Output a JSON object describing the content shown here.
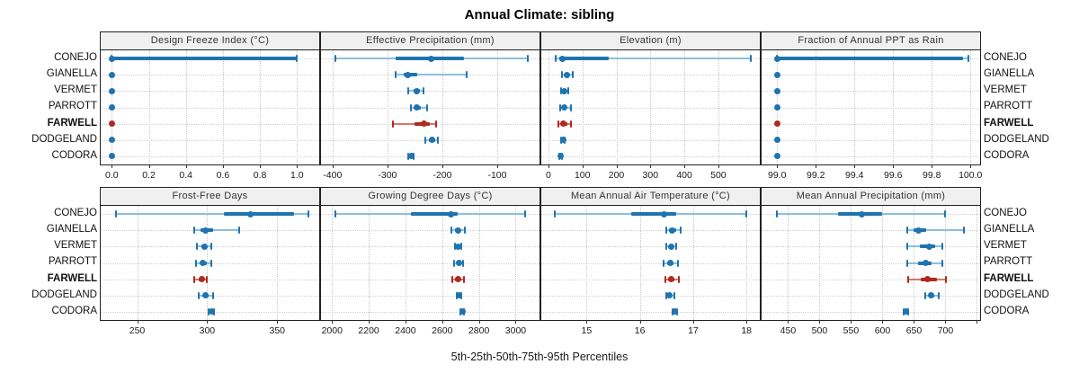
{
  "title": "Annual Climate: sibling",
  "caption": "5th-25th-50th-75th-95th Percentiles",
  "percentile_labels": [
    "5th",
    "25th",
    "50th",
    "75th",
    "95th"
  ],
  "sites": [
    "CONEJO",
    "GIANELLA",
    "VERMET",
    "PARROTT",
    "FARWELL",
    "DODGELAND",
    "CODORA"
  ],
  "highlighted_site": "FARWELL",
  "colors": {
    "point": "#1f74b0",
    "whisker_light": "#8fbedd",
    "highlight_point": "#b02a20",
    "highlight_whisker_light": "#cd7b70",
    "strip_bg": "#f0f0f0",
    "panel_border": "#222222",
    "grid": "#c6c6c6"
  },
  "chart_data": [
    {
      "type": "dotplot-percentiles",
      "title": "Design Freeze Index (°C)",
      "grid_row": 1,
      "grid_col": 1,
      "xlim": [
        -0.06,
        1.12
      ],
      "ticks": [
        {
          "v": 0.0,
          "label": "0.0"
        },
        {
          "v": 0.2,
          "label": "0.2"
        },
        {
          "v": 0.4,
          "label": "0.4"
        },
        {
          "v": 0.6,
          "label": "0.6"
        },
        {
          "v": 0.8,
          "label": "0.8"
        },
        {
          "v": 1.0,
          "label": "1.0"
        }
      ],
      "series": [
        {
          "site": "CONEJO",
          "values": [
            0,
            0,
            0,
            1.0,
            1.0
          ]
        },
        {
          "site": "GIANELLA",
          "values": [
            0,
            0,
            0,
            0,
            0
          ]
        },
        {
          "site": "VERMET",
          "values": [
            0,
            0,
            0,
            0,
            0
          ]
        },
        {
          "site": "PARROTT",
          "values": [
            0,
            0,
            0,
            0,
            0
          ]
        },
        {
          "site": "FARWELL",
          "values": [
            0,
            0,
            0,
            0,
            0
          ]
        },
        {
          "site": "DODGELAND",
          "values": [
            0,
            0,
            0,
            0,
            0
          ]
        },
        {
          "site": "CODORA",
          "values": [
            0,
            0,
            0,
            0,
            0
          ]
        }
      ]
    },
    {
      "type": "dotplot-percentiles",
      "title": "Effective Precipitation (mm)",
      "grid_row": 1,
      "grid_col": 2,
      "xlim": [
        -421,
        -23
      ],
      "ticks": [
        {
          "v": -400,
          "label": "-400"
        },
        {
          "v": -300,
          "label": "-300"
        },
        {
          "v": -200,
          "label": "-200"
        },
        {
          "v": -100,
          "label": "-100"
        }
      ],
      "series": [
        {
          "site": "CONEJO",
          "values": [
            -395,
            -285,
            -220,
            -160,
            -45
          ]
        },
        {
          "site": "GIANELLA",
          "values": [
            -285,
            -270,
            -263,
            -246,
            -155
          ]
        },
        {
          "site": "VERMET",
          "values": [
            -262,
            -252,
            -247,
            -241,
            -234
          ]
        },
        {
          "site": "PARROTT",
          "values": [
            -258,
            -251,
            -246,
            -239,
            -228
          ]
        },
        {
          "site": "FARWELL",
          "values": [
            -290,
            -251,
            -234,
            -222,
            -212
          ]
        },
        {
          "site": "DODGELAND",
          "values": [
            -231,
            -224,
            -219,
            -213,
            -208
          ]
        },
        {
          "site": "CODORA",
          "values": [
            -262,
            -259,
            -257,
            -255,
            -252
          ]
        }
      ]
    },
    {
      "type": "dotplot-percentiles",
      "title": "Elevation (m)",
      "grid_row": 1,
      "grid_col": 3,
      "xlim": [
        -21,
        622
      ],
      "ticks": [
        {
          "v": 0,
          "label": "0"
        },
        {
          "v": 100,
          "label": "100"
        },
        {
          "v": 200,
          "label": "200"
        },
        {
          "v": 300,
          "label": "300"
        },
        {
          "v": 400,
          "label": "400"
        },
        {
          "v": 500,
          "label": "500"
        }
      ],
      "series": [
        {
          "site": "CONEJO",
          "values": [
            22,
            32,
            40,
            178,
            595
          ]
        },
        {
          "site": "GIANELLA",
          "values": [
            40,
            48,
            54,
            62,
            72
          ]
        },
        {
          "site": "VERMET",
          "values": [
            36,
            42,
            46,
            51,
            58
          ]
        },
        {
          "site": "PARROTT",
          "values": [
            34,
            42,
            47,
            53,
            66
          ]
        },
        {
          "site": "FARWELL",
          "values": [
            30,
            38,
            43,
            55,
            67
          ]
        },
        {
          "site": "DODGELAND",
          "values": [
            38,
            41,
            43,
            45,
            48
          ]
        },
        {
          "site": "CODORA",
          "values": [
            33,
            35,
            37,
            39,
            41
          ]
        }
      ]
    },
    {
      "type": "dotplot-percentiles",
      "title": "Fraction of Annual PPT as Rain",
      "grid_row": 1,
      "grid_col": 4,
      "xlim": [
        98.92,
        100.05
      ],
      "ticks": [
        {
          "v": 99.0,
          "label": "99.0"
        },
        {
          "v": 99.2,
          "label": "99.2"
        },
        {
          "v": 99.4,
          "label": "99.4"
        },
        {
          "v": 99.6,
          "label": "99.6"
        },
        {
          "v": 99.8,
          "label": "99.8"
        },
        {
          "v": 100.0,
          "label": "100.0"
        }
      ],
      "series": [
        {
          "site": "CONEJO",
          "values": [
            99.0,
            99.0,
            99.0,
            99.96,
            99.99
          ]
        },
        {
          "site": "GIANELLA",
          "values": [
            99.0,
            99.0,
            99.0,
            99.0,
            99.0
          ]
        },
        {
          "site": "VERMET",
          "values": [
            99.0,
            99.0,
            99.0,
            99.0,
            99.0
          ]
        },
        {
          "site": "PARROTT",
          "values": [
            99.0,
            99.0,
            99.0,
            99.0,
            99.0
          ]
        },
        {
          "site": "FARWELL",
          "values": [
            99.0,
            99.0,
            99.0,
            99.0,
            99.0
          ]
        },
        {
          "site": "DODGELAND",
          "values": [
            99.0,
            99.0,
            99.0,
            99.0,
            99.0
          ]
        },
        {
          "site": "CODORA",
          "values": [
            99.0,
            99.0,
            99.0,
            99.0,
            99.0
          ]
        }
      ]
    },
    {
      "type": "dotplot-percentiles",
      "title": "Frost-Free Days",
      "grid_row": 2,
      "grid_col": 1,
      "xlim": [
        224,
        380
      ],
      "ticks": [
        {
          "v": 250,
          "label": "250"
        },
        {
          "v": 300,
          "label": "300"
        },
        {
          "v": 350,
          "label": "350"
        }
      ],
      "series": [
        {
          "site": "CONEJO",
          "values": [
            235,
            312,
            331,
            362,
            372
          ]
        },
        {
          "site": "GIANELLA",
          "values": [
            291,
            295,
            299,
            304,
            323
          ]
        },
        {
          "site": "VERMET",
          "values": [
            293,
            296,
            298,
            300,
            303
          ]
        },
        {
          "site": "PARROTT",
          "values": [
            292,
            295,
            297,
            300,
            303
          ]
        },
        {
          "site": "FARWELL",
          "values": [
            291,
            294,
            296,
            298,
            300
          ]
        },
        {
          "site": "DODGELAND",
          "values": [
            294,
            297,
            299,
            301,
            304
          ]
        },
        {
          "site": "CODORA",
          "values": [
            301,
            302,
            303,
            304,
            305
          ]
        }
      ]
    },
    {
      "type": "dotplot-percentiles",
      "title": "Growing Degree Days (°C)",
      "grid_row": 2,
      "grid_col": 2,
      "xlim": [
        1940,
        3130
      ],
      "ticks": [
        {
          "v": 2000,
          "label": "2000"
        },
        {
          "v": 2200,
          "label": "2200"
        },
        {
          "v": 2400,
          "label": "2400"
        },
        {
          "v": 2600,
          "label": "2600"
        },
        {
          "v": 2800,
          "label": "2800"
        },
        {
          "v": 3000,
          "label": "3000"
        }
      ],
      "series": [
        {
          "site": "CONEJO",
          "values": [
            2020,
            2430,
            2650,
            2685,
            3050
          ]
        },
        {
          "site": "GIANELLA",
          "values": [
            2650,
            2670,
            2685,
            2700,
            2725
          ]
        },
        {
          "site": "VERMET",
          "values": [
            2670,
            2680,
            2688,
            2695,
            2703
          ]
        },
        {
          "site": "PARROTT",
          "values": [
            2665,
            2680,
            2690,
            2700,
            2715
          ]
        },
        {
          "site": "FARWELL",
          "values": [
            2655,
            2672,
            2685,
            2698,
            2720
          ]
        },
        {
          "site": "DODGELAND",
          "values": [
            2678,
            2685,
            2690,
            2696,
            2703
          ]
        },
        {
          "site": "CODORA",
          "values": [
            2698,
            2704,
            2710,
            2715,
            2720
          ]
        }
      ]
    },
    {
      "type": "dotplot-percentiles",
      "title": "Mean Annual Air Temperature (°C)",
      "grid_row": 2,
      "grid_col": 3,
      "xlim": [
        14.15,
        18.25
      ],
      "ticks": [
        {
          "v": 15,
          "label": "15"
        },
        {
          "v": 16,
          "label": "16"
        },
        {
          "v": 17,
          "label": "17"
        },
        {
          "v": 18,
          "label": "18"
        }
      ],
      "series": [
        {
          "site": "CONEJO",
          "values": [
            14.4,
            15.83,
            16.46,
            16.68,
            18.0
          ]
        },
        {
          "site": "GIANELLA",
          "values": [
            16.5,
            16.55,
            16.61,
            16.68,
            16.76
          ]
        },
        {
          "site": "VERMET",
          "values": [
            16.49,
            16.54,
            16.58,
            16.62,
            16.68
          ]
        },
        {
          "site": "PARROTT",
          "values": [
            16.45,
            16.52,
            16.57,
            16.63,
            16.72
          ]
        },
        {
          "site": "FARWELL",
          "values": [
            16.47,
            16.53,
            16.58,
            16.64,
            16.73
          ]
        },
        {
          "site": "DODGELAND",
          "values": [
            16.5,
            16.53,
            16.56,
            16.6,
            16.64
          ]
        },
        {
          "site": "CODORA",
          "values": [
            16.62,
            16.64,
            16.66,
            16.68,
            16.7
          ]
        }
      ]
    },
    {
      "type": "dotplot-percentiles",
      "title": "Mean Annual Precipitation (mm)",
      "grid_row": 2,
      "grid_col": 4,
      "xlim": [
        408,
        755
      ],
      "ticks": [
        {
          "v": 450,
          "label": "450"
        },
        {
          "v": 500,
          "label": "500"
        },
        {
          "v": 550,
          "label": "550"
        },
        {
          "v": 600,
          "label": "600"
        },
        {
          "v": 650,
          "label": "650"
        },
        {
          "v": 700,
          "label": "700"
        },
        {
          "v": 750,
          "label": ""
        }
      ],
      "series": [
        {
          "site": "CONEJO",
          "values": [
            432,
            530,
            567,
            600,
            700
          ]
        },
        {
          "site": "GIANELLA",
          "values": [
            640,
            650,
            657,
            670,
            730
          ]
        },
        {
          "site": "VERMET",
          "values": [
            640,
            660,
            674,
            684,
            695
          ]
        },
        {
          "site": "PARROTT",
          "values": [
            640,
            657,
            668,
            678,
            695
          ]
        },
        {
          "site": "FARWELL",
          "values": [
            641,
            661,
            672,
            687,
            701
          ]
        },
        {
          "site": "DODGELAND",
          "values": [
            668,
            673,
            677,
            682,
            690
          ]
        },
        {
          "site": "CODORA",
          "values": [
            633,
            635,
            637,
            639,
            641
          ]
        }
      ]
    }
  ]
}
